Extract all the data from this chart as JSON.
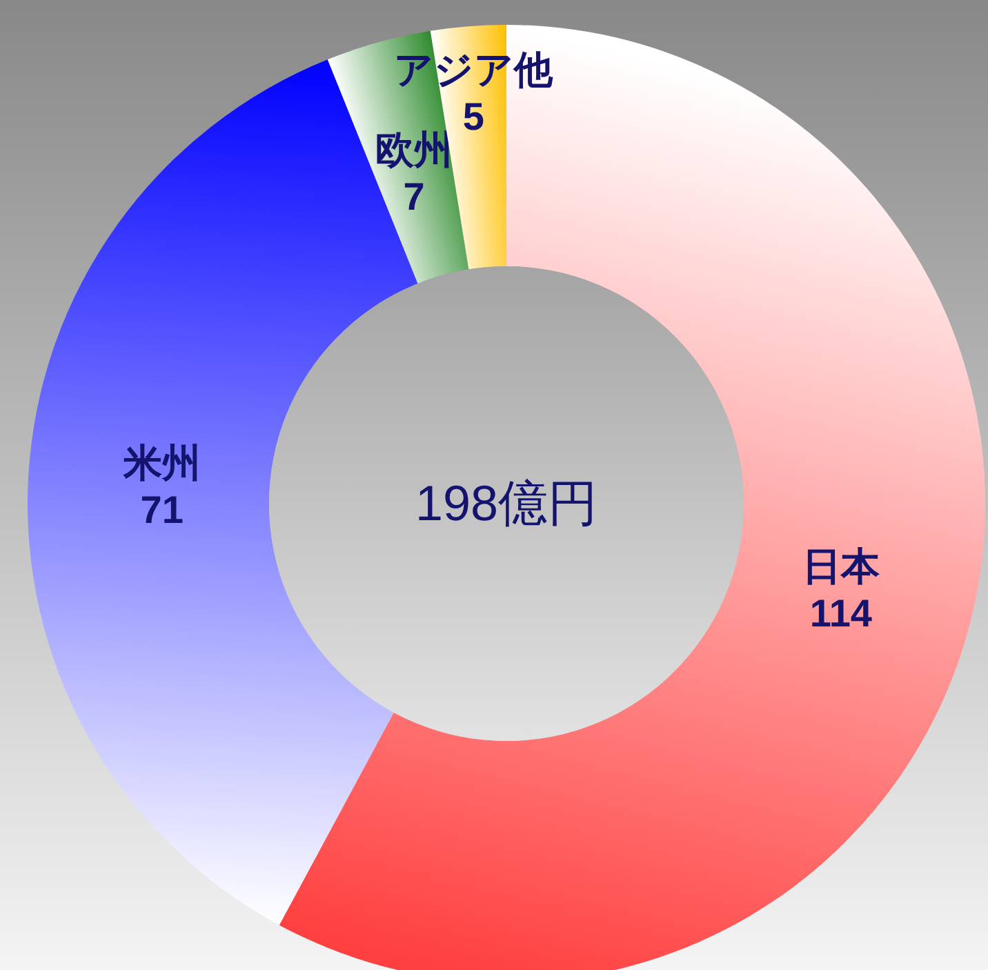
{
  "chart_data": {
    "type": "donut",
    "title": "198億円",
    "categories": [
      "日本",
      "米州",
      "欧州",
      "アジア他"
    ],
    "values": [
      114,
      71,
      7,
      5
    ],
    "colors": [
      "#ff4040",
      "#0000ff",
      "#2e8b2e",
      "#ffc000"
    ],
    "data_labels": true
  }
}
